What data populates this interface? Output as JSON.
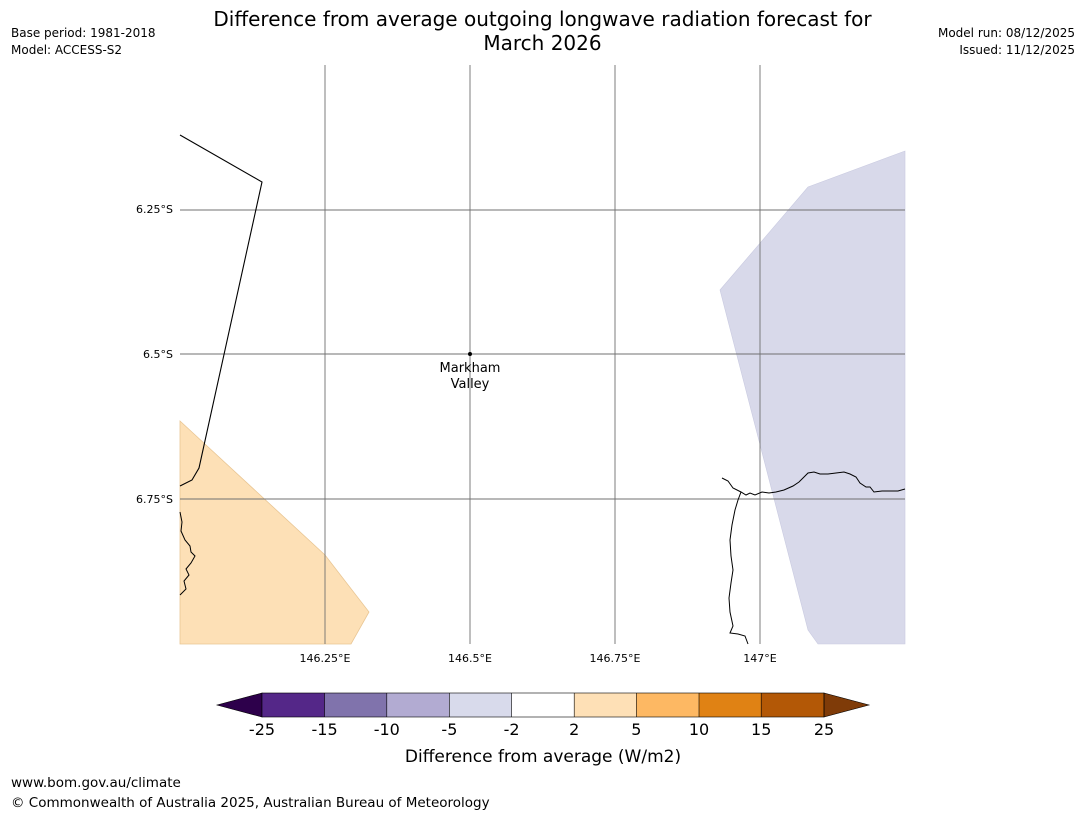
{
  "title": {
    "line1": "Difference from average outgoing longwave radiation forecast for",
    "line2": "March 2026"
  },
  "meta_left": {
    "base_period": "Base period: 1981-2018",
    "model": "Model: ACCESS-S2"
  },
  "meta_right": {
    "model_run": "Model run: 08/12/2025",
    "issued": "Issued: 11/12/2025"
  },
  "map": {
    "lat_labels": [
      "6.25°S",
      "6.5°S",
      "6.75°S"
    ],
    "lon_labels": [
      "146.25°E",
      "146.5°E",
      "146.75°E",
      "147°E"
    ],
    "place": {
      "line1": "Markham",
      "line2": "Valley"
    },
    "regions": [
      {
        "category": "2 to 5",
        "color": "#fde0b6"
      },
      {
        "category": "-5 to -2",
        "color": "#d8d9ea"
      }
    ]
  },
  "colorbar": {
    "title": "Difference from average (W/m2)",
    "ticks": [
      "-25",
      "-15",
      "-10",
      "-5",
      "-2",
      "2",
      "5",
      "10",
      "15",
      "25"
    ],
    "colors": {
      "under": "#2d004b",
      "bins": [
        "#542788",
        "#8073ac",
        "#b2abd2",
        "#d8daeb",
        "#ffffff",
        "#fee0b6",
        "#fdb863",
        "#e08214",
        "#b35806"
      ],
      "over": "#7f3b08"
    }
  },
  "footer": {
    "url": "www.bom.gov.au/climate",
    "copyright": "© Commonwealth of Australia 2025, Australian Bureau of Meteorology"
  }
}
